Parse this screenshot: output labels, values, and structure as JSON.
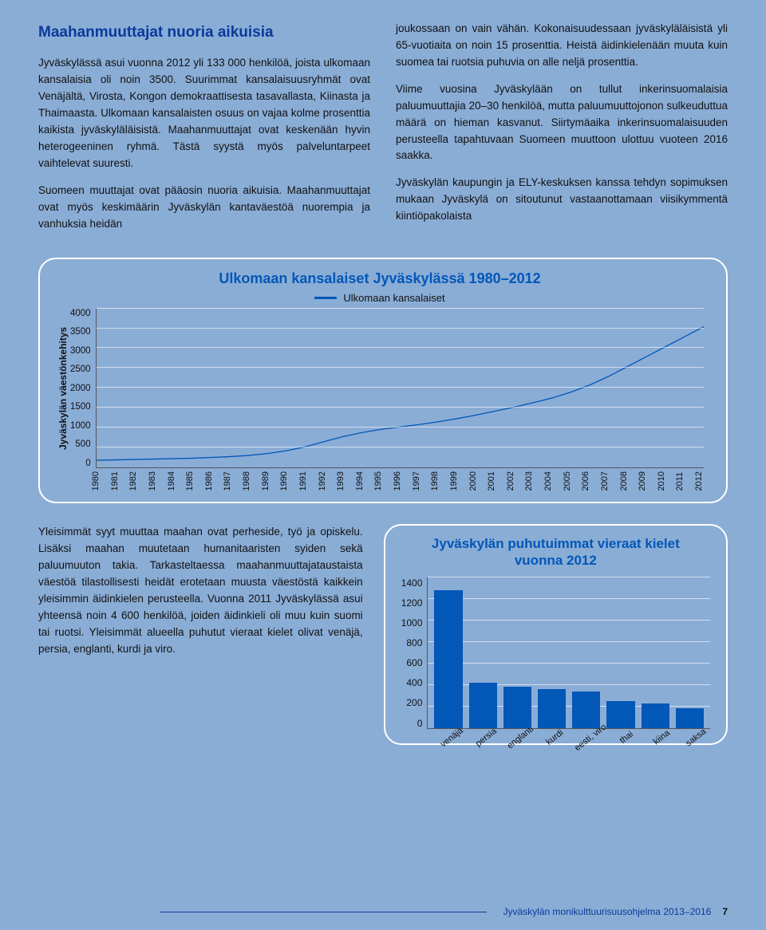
{
  "heading": "Maahanmuuttajat nuoria aikuisia",
  "left_paragraphs": [
    "Jyväskylässä asui vuonna 2012 yli 133 000 henkilöä, joista ulkomaan kansalaisia oli noin 3500. Suurimmat kansalaisuusryhmät ovat Venäjältä, Virosta, Kongon demokraattisesta tasavallasta, Kiinasta ja Thaimaasta. Ulkomaan kansalaisten osuus on vajaa kolme prosenttia kaikista jyväskyläläisistä. Maahanmuuttajat ovat keskenään hyvin heterogeeninen ryhmä. Tästä syystä myös palveluntarpeet vaihtelevat suuresti.",
    "Suomeen muuttajat ovat pääosin nuoria aikuisia. Maahanmuuttajat ovat myös keskimäärin Jyväskylän kantaväestöä nuorempia ja vanhuksia heidän"
  ],
  "right_paragraphs": [
    "joukossaan on vain vähän. Kokonaisuudessaan jyväskyläläisistä yli 65-vuotiaita on noin 15 prosenttia. Heistä äidinkielenään muuta kuin suomea tai ruotsia puhuvia on alle neljä prosenttia.",
    "Viime vuosina Jyväskylään on tullut inkerinsuomalaisia paluumuuttajia 20–30 henkilöä, mutta paluumuuttojonon sulkeuduttua määrä on hieman kasvanut. Siirtymäaika inkerinsuomalaisuuden perusteella tapahtuvaan Suomeen muuttoon ulottuu vuoteen 2016 saakka.",
    "Jyväskylän kaupungin ja ELY-keskuksen kanssa tehdyn sopimuksen mukaan Jyväskylä on sitoutunut vastaanottamaan viisikymmentä kiintiöpakolaista"
  ],
  "chart1": {
    "title": "Ulkomaan kansalaiset Jyväskylässä 1980–2012",
    "legend": "Ulkomaan kansalaiset",
    "ylabel": "Jyväskylän väestönkehitys",
    "ymax": 4000,
    "ytick_step": 500,
    "years": [
      "1980",
      "1981",
      "1982",
      "1983",
      "1984",
      "1985",
      "1986",
      "1987",
      "1988",
      "1989",
      "1990",
      "1991",
      "1992",
      "1993",
      "1994",
      "1995",
      "1996",
      "1997",
      "1998",
      "1999",
      "2000",
      "2001",
      "2002",
      "2003",
      "2004",
      "2005",
      "2006",
      "2007",
      "2008",
      "2009",
      "2010",
      "2011",
      "2012"
    ],
    "values": [
      180,
      190,
      200,
      210,
      220,
      230,
      250,
      270,
      300,
      350,
      420,
      520,
      650,
      780,
      880,
      960,
      1020,
      1080,
      1150,
      1230,
      1320,
      1420,
      1520,
      1630,
      1750,
      1900,
      2080,
      2300,
      2550,
      2800,
      3050,
      3300,
      3550
    ],
    "line_color": "#0257b7",
    "grid_color": "rgba(255,255,255,0.6)"
  },
  "bottom_text": "Yleisimmät syyt muuttaa maahan ovat perheside, työ ja opiskelu. Lisäksi maahan muutetaan humanitaaristen syiden sekä paluumuuton takia. Tarkasteltaessa maahanmuuttajataustaista väestöä tilastollisesti heidät erotetaan muusta väestöstä kaikkein yleisimmin äidinkielen perusteella. Vuonna 2011 Jyväskylässä asui yhteensä noin 4 600 henkilöä, joiden äidinkieli oli muu kuin suomi tai ruotsi. Yleisimmät alueella puhutut vieraat kielet olivat venäjä, persia, englanti, kurdi ja viro.",
  "chart2": {
    "title_l1": "Jyväskylän puhutuimmat vieraat kielet",
    "title_l2": "vuonna 2012",
    "ymax": 1400,
    "ytick_step": 200,
    "categories": [
      "venäjä",
      "persia",
      "englanti",
      "kurdi",
      "eesti, viro",
      "thai",
      "kiina",
      "saksa"
    ],
    "values": [
      1280,
      420,
      380,
      360,
      340,
      250,
      230,
      180
    ],
    "bar_color": "#0257b7",
    "grid_color": "rgba(255,255,255,0.6)"
  },
  "footer_text": "Jyväskylän monikulttuurisuusohjelma 2013–2016",
  "page_number": "7"
}
